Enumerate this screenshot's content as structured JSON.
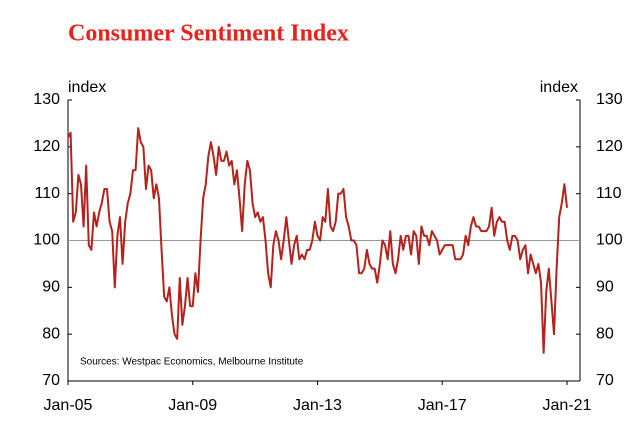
{
  "chart_data": {
    "type": "line",
    "title": "Consumer Sentiment Index",
    "y_label": "index",
    "y2_label": "index",
    "source": "Sources: Westpac Economics, Melbourne Institute",
    "categories": [
      "Jan-05",
      null,
      null,
      null,
      null,
      null,
      null,
      null,
      null,
      null,
      null,
      null,
      null,
      null,
      null,
      null,
      null,
      null,
      null,
      null,
      null,
      null,
      null,
      null,
      null,
      null,
      null,
      null,
      null,
      null,
      null,
      null,
      null,
      null,
      null,
      null,
      null,
      null,
      null,
      null,
      null,
      null,
      null,
      null,
      null,
      null,
      null,
      null,
      "Jan-09",
      null,
      null,
      null,
      null,
      null,
      null,
      null,
      null,
      null,
      null,
      null,
      null,
      null,
      null,
      null,
      null,
      null,
      null,
      null,
      null,
      null,
      null,
      null,
      null,
      null,
      null,
      null,
      null,
      null,
      null,
      null,
      null,
      null,
      null,
      null,
      null,
      null,
      null,
      null,
      null,
      null,
      null,
      null,
      null,
      null,
      null,
      null,
      "Jan-13",
      null,
      null,
      null,
      null,
      null,
      null,
      null,
      null,
      null,
      null,
      null,
      null,
      null,
      null,
      null,
      null,
      null,
      null,
      null,
      null,
      null,
      null,
      null,
      null,
      null,
      null,
      null,
      null,
      null,
      null,
      null,
      null,
      null,
      null,
      null,
      null,
      null,
      null,
      null,
      null,
      null,
      null,
      null,
      null,
      null,
      null,
      null,
      "Jan-17",
      null,
      null,
      null,
      null,
      null,
      null,
      null,
      null,
      null,
      null,
      null,
      null,
      null,
      null,
      null,
      null,
      null,
      null,
      null,
      null,
      null,
      null,
      null,
      null,
      null,
      null,
      null,
      null,
      null,
      null,
      null,
      null,
      null,
      null,
      null,
      null,
      null,
      null,
      null,
      null,
      null,
      null,
      null,
      null,
      null,
      null,
      null,
      "Jan-21"
    ],
    "series": [
      {
        "color": "#b5221c",
        "values": [
          122,
          123,
          104,
          106,
          114,
          112,
          103,
          116,
          99,
          98,
          106,
          103,
          106,
          108,
          111,
          111,
          104,
          102,
          90,
          101,
          105,
          95,
          104,
          108,
          110,
          115,
          115,
          124,
          121,
          120,
          111,
          116,
          115,
          109,
          112,
          109,
          98,
          88,
          87,
          90,
          84,
          80,
          79,
          92,
          82,
          86,
          92,
          86,
          86,
          93,
          89,
          100,
          109,
          112,
          118,
          121,
          118,
          114,
          120,
          117,
          117,
          119,
          116,
          117,
          112,
          115,
          109,
          102,
          112,
          117,
          115,
          108,
          105,
          106,
          104,
          105,
          100,
          93,
          90,
          99,
          102,
          100,
          96,
          100,
          105,
          100,
          95,
          99,
          101,
          96,
          97,
          96,
          98,
          98,
          100,
          104,
          101,
          100,
          105,
          104,
          111,
          103,
          102,
          104,
          110,
          110,
          111,
          105,
          103,
          100,
          100,
          99,
          93,
          93,
          94,
          98,
          95,
          94,
          94,
          91,
          95,
          100,
          99,
          96,
          102,
          95,
          93,
          96,
          101,
          98,
          101,
          101,
          97,
          102,
          101,
          95,
          103,
          101,
          101,
          99,
          102,
          101,
          100,
          97,
          98,
          99,
          99,
          99,
          99,
          96,
          96,
          96,
          97,
          101,
          99,
          103,
          105,
          103,
          103,
          102,
          102,
          102,
          103,
          107,
          101,
          104,
          105,
          104,
          104,
          100,
          98,
          101,
          101,
          100,
          96,
          98,
          99,
          93,
          97,
          95,
          93,
          95,
          91,
          76,
          89,
          94,
          87,
          80,
          94,
          105,
          108,
          112,
          107
        ]
      }
    ],
    "ylim": [
      70,
      130
    ],
    "yticks": [
      70,
      80,
      90,
      100,
      110,
      120,
      130
    ],
    "y2lim": [
      70,
      130
    ],
    "y2ticks": [
      70,
      80,
      90,
      100,
      110,
      120,
      130
    ],
    "reference_line": 100
  }
}
